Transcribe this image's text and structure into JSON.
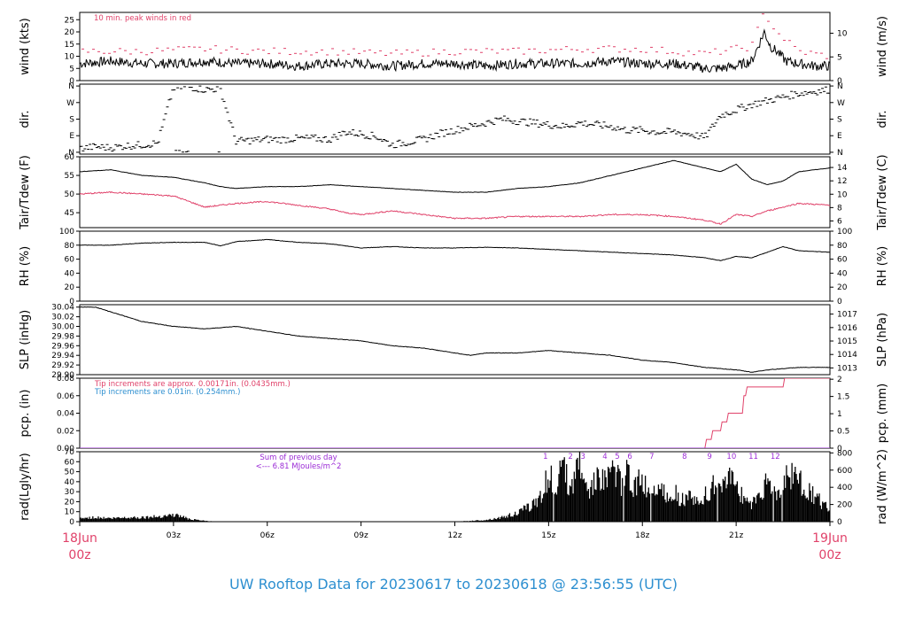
{
  "colors": {
    "red": "#e0426a",
    "blue": "#2d8fd0",
    "purple": "#9b2bd6",
    "black": "#000000"
  },
  "chart_data": [
    {
      "type": "line",
      "id": "wind",
      "ylabel": "wind (kts)",
      "ylabel_right": "wind (m/s)",
      "ylim": [
        0,
        28
      ],
      "yticks": [
        "0",
        "5",
        "10",
        "15",
        "20",
        "25"
      ],
      "ylim_right": [
        0,
        14.4
      ],
      "yticks_right": [
        "0",
        "5",
        "10"
      ],
      "annotation": "10 min. peak winds in red",
      "series": [
        {
          "name": "wind",
          "x": [
            0,
            1,
            2,
            3,
            4,
            5,
            6,
            7,
            8,
            9,
            10,
            11,
            12,
            13,
            14,
            15,
            16,
            17,
            18,
            19,
            19.5,
            20,
            20.5,
            21,
            21.5,
            21.9,
            22.1,
            22.3,
            22.6,
            23,
            23.5,
            24
          ],
          "y": [
            7,
            8,
            7,
            7,
            8,
            7,
            7,
            6,
            7,
            7,
            6,
            7,
            7,
            6,
            7,
            7,
            7,
            8,
            7,
            7,
            6,
            5,
            5,
            6,
            8,
            20,
            14,
            12,
            8,
            7,
            6,
            6
          ]
        },
        {
          "name": "10 min. peak",
          "x": [
            0,
            2,
            4,
            6,
            8,
            10,
            12,
            14,
            16,
            18,
            20,
            21.5,
            21.9,
            22.3,
            23,
            24
          ],
          "y": [
            12,
            12,
            13,
            12,
            12,
            11,
            12,
            12,
            13,
            13,
            11,
            14,
            28,
            20,
            12,
            10
          ]
        }
      ]
    },
    {
      "type": "scatter",
      "id": "direction",
      "ylabel": "dir.",
      "ylabel_right": "dir.",
      "ylim": [
        -10,
        370
      ],
      "yticks": [
        "N",
        "E",
        "S",
        "W",
        "N"
      ],
      "series": [
        {
          "name": "direction",
          "x": [
            0,
            0.5,
            1,
            1.5,
            2,
            2.5,
            3,
            3.5,
            4,
            4.5,
            5,
            5.5,
            6,
            6.5,
            7,
            7.5,
            8,
            8.5,
            9,
            9.5,
            10,
            10.5,
            11,
            11.5,
            12,
            12.5,
            13,
            13.5,
            14,
            14.5,
            15,
            15.5,
            16,
            16.5,
            17,
            17.5,
            18,
            18.5,
            19,
            19.5,
            20,
            20.5,
            21,
            21.5,
            22,
            22.5,
            23,
            23.5,
            24
          ],
          "y": [
            20,
            30,
            25,
            35,
            40,
            50,
            350,
            355,
            340,
            345,
            60,
            65,
            70,
            70,
            75,
            75,
            70,
            110,
            100,
            85,
            40,
            55,
            70,
            100,
            120,
            140,
            160,
            180,
            170,
            160,
            150,
            140,
            160,
            150,
            140,
            120,
            120,
            110,
            110,
            100,
            80,
            200,
            230,
            260,
            280,
            300,
            320,
            330,
            340
          ]
        }
      ]
    },
    {
      "type": "line",
      "id": "temperature",
      "ylabel": "Tair/Tdew (F)",
      "ylabel_right": "Tair/Tdew (C)",
      "ylim": [
        41,
        60
      ],
      "yticks": [
        "45",
        "50",
        "55",
        "60"
      ],
      "ylim_right": [
        5.0,
        15.6
      ],
      "yticks_right": [
        "6",
        "8",
        "10",
        "12",
        "14"
      ],
      "series": [
        {
          "name": "Tair",
          "x": [
            0,
            1,
            2,
            3,
            4,
            4.5,
            5,
            6,
            7,
            8,
            9,
            10,
            11,
            12,
            13,
            14,
            15,
            16,
            17,
            18,
            18.5,
            19,
            20,
            20.5,
            21,
            21.5,
            22,
            22.5,
            23,
            24
          ],
          "y": [
            56,
            56.5,
            55,
            54.5,
            53,
            52,
            51.5,
            52,
            52,
            52.5,
            52,
            51.5,
            51,
            50.5,
            50.5,
            51.5,
            52,
            53,
            55,
            57,
            58,
            59,
            57,
            56,
            58,
            54,
            52.5,
            53.5,
            56,
            57
          ]
        },
        {
          "name": "Tdew",
          "x": [
            0,
            1,
            2,
            3,
            4,
            5,
            6,
            7,
            8,
            8.5,
            9,
            10,
            11,
            12,
            13,
            14,
            15,
            16,
            17,
            18,
            19,
            20,
            20.5,
            21,
            21.5,
            22,
            23,
            24
          ],
          "y": [
            50,
            50.5,
            50,
            49.5,
            46.5,
            47.5,
            48,
            47,
            46,
            45,
            44.5,
            45.5,
            44.5,
            43.5,
            43.5,
            44,
            44,
            44,
            44.5,
            44.5,
            44,
            43,
            42,
            44.5,
            44,
            45.5,
            47.5,
            47
          ]
        }
      ]
    },
    {
      "type": "line",
      "id": "rh",
      "ylabel": "RH (%)",
      "ylabel_right": "RH (%)",
      "ylim": [
        0,
        100
      ],
      "yticks": [
        "0",
        "20",
        "40",
        "60",
        "80",
        "100"
      ],
      "yticks_right": [
        "0",
        "20",
        "40",
        "60",
        "80",
        "100"
      ],
      "series": [
        {
          "name": "RH",
          "x": [
            0,
            1,
            2,
            3,
            4,
            4.5,
            5,
            6,
            7,
            8,
            9,
            10,
            11,
            12,
            13,
            14,
            15,
            16,
            17,
            18,
            19,
            20,
            20.5,
            21,
            21.5,
            22,
            22.5,
            23,
            24
          ],
          "y": [
            80,
            80,
            83,
            84,
            84,
            79,
            85,
            88,
            84,
            82,
            76,
            78,
            76,
            76,
            77,
            76,
            74,
            72,
            70,
            68,
            66,
            62,
            58,
            64,
            62,
            70,
            78,
            72,
            70
          ]
        }
      ]
    },
    {
      "type": "line",
      "id": "slp",
      "ylabel": "SLP (inHg)",
      "ylabel_right": "SLP (hPa)",
      "ylim": [
        29.9,
        30.045
      ],
      "yticks": [
        "29.90",
        "29.92",
        "29.94",
        "29.96",
        "29.98",
        "30.00",
        "30.02",
        "30.04"
      ],
      "ylim_right": [
        1012.5,
        1017.7
      ],
      "yticks_right": [
        "1013",
        "1014",
        "1015",
        "1016",
        "1017"
      ],
      "series": [
        {
          "name": "SLP",
          "x": [
            0,
            0.5,
            1,
            1.5,
            2,
            3,
            4,
            5,
            6,
            7,
            8,
            9,
            10,
            11,
            12,
            12.5,
            13,
            14,
            15,
            16,
            17,
            18,
            19,
            20,
            21,
            21.5,
            22,
            23,
            24
          ],
          "y": [
            30.04,
            30.04,
            30.03,
            30.02,
            30.01,
            30.0,
            29.995,
            30.0,
            29.99,
            29.98,
            29.975,
            29.97,
            29.96,
            29.955,
            29.945,
            29.94,
            29.945,
            29.945,
            29.95,
            29.945,
            29.94,
            29.93,
            29.925,
            29.915,
            29.91,
            29.905,
            29.91,
            29.915,
            29.915
          ]
        }
      ]
    },
    {
      "type": "line",
      "id": "precip",
      "ylabel": "pcp. (in)",
      "ylabel_right": "pcp. (mm)",
      "ylim": [
        0,
        0.08
      ],
      "yticks": [
        "0.00",
        "0.02",
        "0.04",
        "0.06",
        "0.08"
      ],
      "ylim_right": [
        0,
        2.03
      ],
      "yticks_right": [
        "0",
        "0.5",
        "1",
        "1.5",
        "2"
      ],
      "notes": [
        "Tip increments are approx. 0.00171in. (0.0435mm.)",
        "Tip increments are 0.01in. (0.254mm.)"
      ],
      "series": [
        {
          "name": "precip (approx)",
          "x": [
            0,
            20.0,
            20.05,
            20.2,
            20.25,
            20.5,
            20.55,
            20.7,
            20.75,
            21.2,
            21.25,
            21.3,
            21.35,
            22.5,
            22.55,
            24
          ],
          "y": [
            0,
            0,
            0.01,
            0.01,
            0.02,
            0.02,
            0.03,
            0.03,
            0.04,
            0.04,
            0.06,
            0.06,
            0.07,
            0.07,
            0.08,
            0.08
          ]
        },
        {
          "name": "precip (0.01in)",
          "x": [
            0,
            24
          ],
          "y": [
            0,
            0
          ]
        }
      ]
    },
    {
      "type": "area",
      "id": "radiation",
      "ylabel": "rad(Lgly/hr)",
      "ylabel_right": "rad (W/m^2)",
      "ylim": [
        0,
        70
      ],
      "yticks": [
        "0",
        "10",
        "20",
        "30",
        "40",
        "50",
        "60",
        "70"
      ],
      "ylim_right": [
        0,
        814
      ],
      "yticks_right": [
        "0",
        "200",
        "400",
        "600",
        "800"
      ],
      "notes": [
        "Sum of previous day",
        "<--- 6.81 MJoules/m^2"
      ],
      "hour_marks": [
        "1",
        "2",
        "3",
        "4",
        "5",
        "6",
        "7",
        "8",
        "9",
        "10",
        "11",
        "12"
      ],
      "hour_marks_x": [
        14.9,
        15.7,
        16.1,
        16.8,
        17.2,
        17.6,
        18.3,
        19.35,
        20.15,
        20.85,
        21.55,
        22.25
      ],
      "series": [
        {
          "name": "radiation",
          "x": [
            0,
            0.5,
            1,
            1.5,
            2,
            2.5,
            2.7,
            3.0,
            3.3,
            3.5,
            4.0,
            4.2,
            4.5,
            12.0,
            12.5,
            13.0,
            13.5,
            14.0,
            14.5,
            14.8,
            15.0,
            15.2,
            15.5,
            15.7,
            15.9,
            16.1,
            16.3,
            16.5,
            16.7,
            16.9,
            17.1,
            17.3,
            17.5,
            17.7,
            17.9,
            18.2,
            18.5,
            18.8,
            19.0,
            19.2,
            19.5,
            19.8,
            20.1,
            20.4,
            20.7,
            20.9,
            21.0,
            21.2,
            21.5,
            21.8,
            22.0,
            22.3,
            22.6,
            22.9,
            23.2,
            23.5,
            23.8,
            24
          ],
          "y": [
            4,
            5,
            4,
            5,
            5,
            6,
            7,
            8,
            6,
            3,
            1,
            0.5,
            0,
            0,
            1,
            2,
            5,
            10,
            20,
            35,
            55,
            45,
            60,
            40,
            65,
            70,
            30,
            55,
            45,
            50,
            62,
            45,
            58,
            40,
            50,
            35,
            45,
            30,
            38,
            25,
            30,
            20,
            35,
            45,
            40,
            60,
            45,
            30,
            20,
            35,
            45,
            30,
            50,
            55,
            40,
            30,
            20,
            15
          ]
        }
      ]
    },
    {
      "type": "axis",
      "id": "time-axis",
      "xlim": [
        0,
        24
      ],
      "xticks": [
        "03z",
        "06z",
        "09z",
        "12z",
        "15z",
        "18z",
        "21z"
      ],
      "xtick_values": [
        3,
        6,
        9,
        12,
        15,
        18,
        21
      ],
      "start_date": "18Jun",
      "start_hour": "00z",
      "end_date": "19Jun",
      "end_hour": "00z"
    }
  ],
  "title": "UW Rooftop Data for 20230617  to  20230618 @ 23:56:55  (UTC)"
}
